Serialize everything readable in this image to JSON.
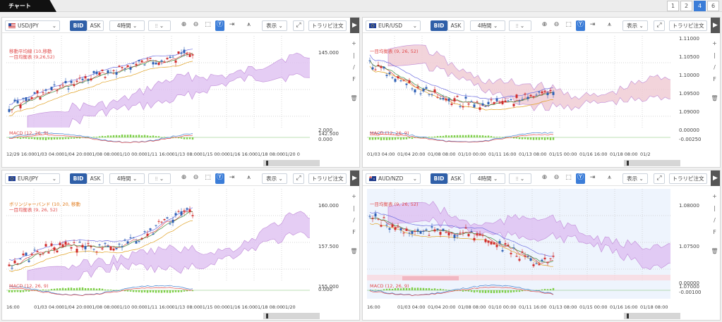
{
  "header": {
    "tab_label": "チャート",
    "pages": [
      "1",
      "2",
      "4",
      "6"
    ],
    "active_page": "4"
  },
  "common": {
    "bid": "BID",
    "ask": "ASK",
    "timeframe": "4時間",
    "display": "表示",
    "trendline_order": "トラリピ注文",
    "side_arrow": "▶"
  },
  "colors": {
    "up_candle": "#d12b2b",
    "down_candle": "#2d5fb5",
    "ichimoku_cloud_bull": "#d9b6ec",
    "ichimoku_cloud_bear": "#f0c4cc",
    "macd_hist": "#7fcf4a",
    "macd_line": "#3f7fd0",
    "signal_line": "#e04a4a"
  },
  "panels": [
    {
      "symbol": "USD/JPY",
      "flag": "us",
      "legend": [
        "移動平均線 (10,移動",
        "一目均衡表 (9,26,52)"
      ],
      "legend_color": "#e04a4a",
      "y_ticks": [
        "145.000",
        "142.500"
      ],
      "macd_label": "MACD (12, 26, 9)",
      "macd_ticks": [
        "2.000",
        "0.000"
      ],
      "x_ticks": [
        "12/29 16:00",
        "01/03 04:00",
        "01/04 20:00",
        "01/08 08:00",
        "01/10 00:00",
        "01/11 16:00",
        "01/13 08:00",
        "01/15 00:00",
        "01/16 16:00",
        "01/18 08:00",
        "01/20 0"
      ]
    },
    {
      "symbol": "EUR/USD",
      "flag": "eu",
      "legend": [
        "一目均衡表 (9, 26, 52)"
      ],
      "legend_color": "#e04a4a",
      "y_ticks": [
        "1.10500",
        "1.10000",
        "1.09500",
        "1.09000"
      ],
      "y_top": "1.11000",
      "macd_label": "MACD (12, 26, 9)",
      "macd_ticks": [
        "0.00000",
        "-0.00250"
      ],
      "x_ticks": [
        "01/03 04:00",
        "01/04 20:00",
        "01/08 08:00",
        "01/10 00:00",
        "01/11 16:00",
        "01/13 08:00",
        "01/15 00:00",
        "01/16 16:00",
        "01/18 08:00",
        "01/2"
      ]
    },
    {
      "symbol": "EUR/JPY",
      "flag": "eu",
      "legend": [
        "ボリンジャーバンド (10, 20, 移動",
        "一目均衡表 (9, 26, 52)"
      ],
      "legend_color": "#e07a1a",
      "y_ticks": [
        "160.000",
        "157.500",
        "155.000"
      ],
      "macd_label": "MACD (12, 26, 9)",
      "macd_ticks": [
        "0.000"
      ],
      "x_ticks": [
        "16:00",
        "01/03 04:00",
        "01/04 20:00",
        "01/08 08:00",
        "01/10 00:00",
        "01/11 16:00",
        "01/13 08:00",
        "01/15 00:00",
        "01/16 16:00",
        "01/18 08:00",
        "01/20"
      ]
    },
    {
      "symbol": "AUD/NZD",
      "flag": "au",
      "legend": [
        "一目均衡表 (9, 26, 52)"
      ],
      "legend_color": "#e04a4a",
      "y_ticks": [
        "1.08000",
        "1.07500",
        "1.07000"
      ],
      "macd_label": "MACD (12, 26, 9)",
      "macd_ticks": [
        "0.00000",
        "-0.00100"
      ],
      "x_ticks": [
        "16:00",
        "01/03 04:00",
        "01/04 20:00",
        "01/08 08:00",
        "01/10 00:00",
        "01/11 16:00",
        "01/13 08:00",
        "01/15 00:00",
        "01/16 16:00",
        "01/18 08:00"
      ]
    }
  ]
}
